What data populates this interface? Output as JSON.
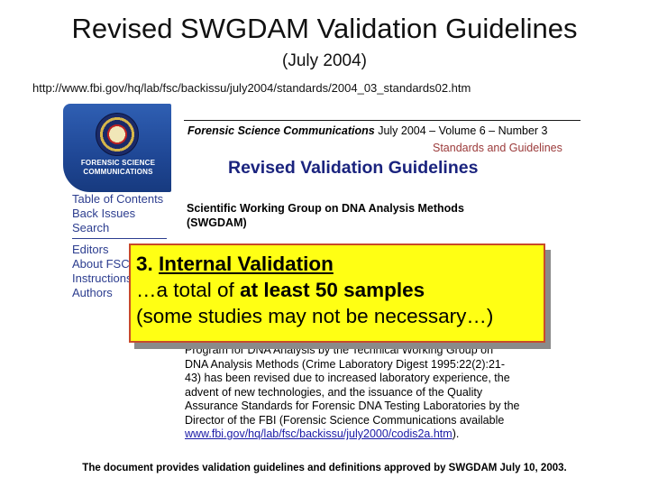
{
  "slide": {
    "title": "Revised SWGDAM Validation Guidelines",
    "subtitle": "(July 2004)",
    "source_url": "http://www.fbi.gov/hq/lab/fsc/backissu/july2004/standards/2004_03_standards02.htm"
  },
  "webpage": {
    "logo_text": "FORENSIC SCIENCE COMMUNICATIONS",
    "header": {
      "journal": "Forensic Science Communications",
      "issue": "July 2004 – Volume 6 – Number 3"
    },
    "section_label": "Standards and Guidelines",
    "page_heading": "Revised Validation Guidelines",
    "nav_primary": [
      "Table of Contents",
      "Back Issues",
      "Search"
    ],
    "nav_secondary": [
      "Editors",
      "About FSC",
      "Instructions",
      "Authors"
    ],
    "org_name": "Scientific Working Group on DNA Analysis Methods",
    "org_abbr": "(SWGDAM)",
    "body_lines": [
      "Program for DNA Analysis by the Technical Working Group on",
      "DNA Analysis Methods (Crime Laboratory Digest 1995:22(2):21-",
      "43) has been revised due to increased laboratory experience, the",
      "advent of new technologies, and the issuance of the Quality",
      "Assurance Standards for Forensic DNA Testing Laboratories by the",
      "Director of the FBI (Forensic Science Communications available"
    ],
    "body_link": "www.fbi.gov/hq/lab/fsc/backissu/july2000/codis2a.htm",
    "body_link_suffix": ")."
  },
  "callout": {
    "number": "3.",
    "heading": "Internal Validation",
    "line2_prefix": "…a total of ",
    "line2_bold": "at least 50 samples",
    "line3": "(some studies may not be necessary…)"
  },
  "footer": "The document provides validation guidelines and definitions approved by SWGDAM July 10, 2003.",
  "colors": {
    "callout_fill": "#ffff14",
    "callout_border": "#c84a2a",
    "banner_blue": "#1f4795",
    "heading_blue": "#1a237e",
    "nav_blue": "#2c3d8f"
  }
}
